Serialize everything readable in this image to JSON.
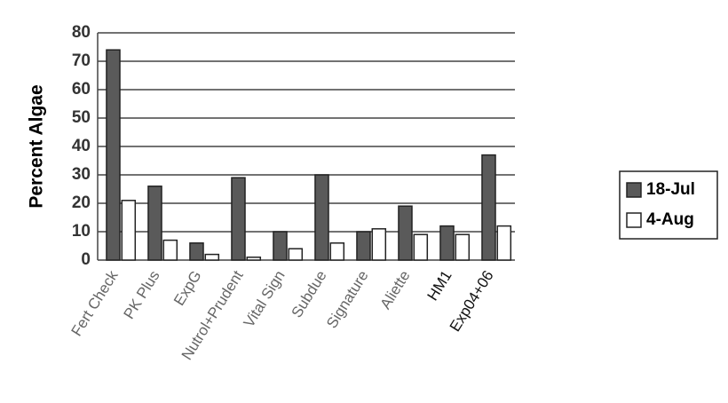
{
  "chart_data": {
    "type": "bar",
    "y_label": "Percent Algae",
    "categories": [
      "Fert Check",
      "PK Plus",
      "ExpG",
      "Nutrol+Prudent",
      "Vital Sign",
      "Subdue",
      "Signature",
      "Aliette",
      "HM1",
      "Exp04+06"
    ],
    "series": [
      {
        "name": "18-Jul",
        "color": "#5a5a5a",
        "values": [
          74,
          26,
          6,
          29,
          10,
          30,
          10,
          19,
          12,
          37
        ]
      },
      {
        "name": "4-Aug",
        "color": "#ffffff",
        "values": [
          21,
          7,
          2,
          1,
          4,
          6,
          11,
          9,
          9,
          12
        ]
      }
    ],
    "ylim": [
      0,
      80
    ],
    "yticks": [
      0,
      10,
      20,
      30,
      40,
      50,
      60,
      70,
      80
    ],
    "grid": true,
    "legend": "right"
  }
}
